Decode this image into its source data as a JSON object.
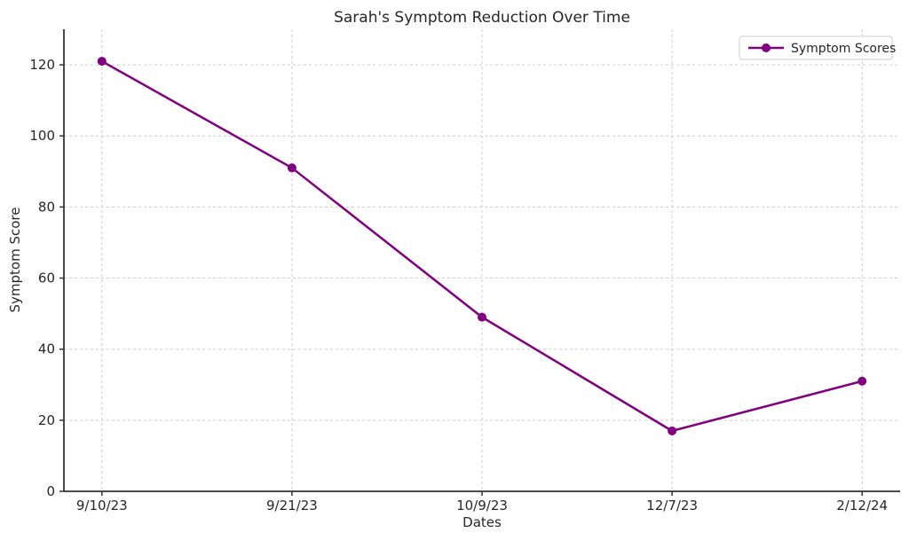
{
  "chart_data": {
    "type": "line",
    "title": "Sarah's Symptom Reduction Over Time",
    "xlabel": "Dates",
    "ylabel": "Symptom Score",
    "categories": [
      "9/10/23",
      "9/21/23",
      "10/9/23",
      "12/7/23",
      "2/12/24"
    ],
    "series": [
      {
        "name": "Symptom Scores",
        "values": [
          121,
          91,
          49,
          17,
          31
        ],
        "color": "#800080",
        "marker": "circle",
        "line_width": 2.5,
        "marker_radius": 5
      }
    ],
    "ylim": [
      0,
      130
    ],
    "yticks": [
      0,
      20,
      40,
      60,
      80,
      100,
      120
    ],
    "x_margin_units": 0.2,
    "grid": "dashed, both axes",
    "legend_position": "upper right"
  },
  "colors": {
    "background": "#ffffff",
    "grid": "#cccccc",
    "spine": "#333333",
    "tick": "#333333",
    "text": "#262626",
    "legend_border": "#cccccc",
    "legend_fill": "#ffffff"
  }
}
